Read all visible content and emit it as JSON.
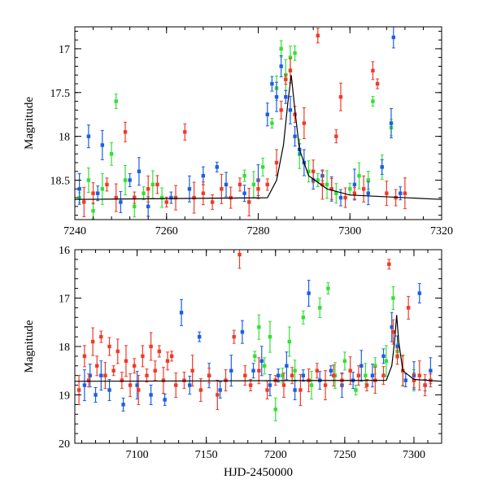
{
  "chart_data": [
    {
      "type": "scatter",
      "title": "",
      "xlabel": "",
      "ylabel": "Magnitude",
      "xlim": [
        7240,
        7320
      ],
      "ylim": [
        18.95,
        16.75
      ],
      "y_inverted": true,
      "x_ticks": [
        7240,
        7260,
        7280,
        7300,
        7320
      ],
      "y_ticks": [
        17,
        17.5,
        18,
        18.5
      ],
      "x_tick_labels": [
        "7240",
        "7260",
        "7280",
        "7300",
        "7320"
      ],
      "y_tick_labels": [
        "17",
        "17.5",
        "18",
        "18.5"
      ],
      "series": [
        {
          "name": "green",
          "color": "#33e033",
          "points": [
            [
              7241,
              18.7
            ],
            [
              7243,
              18.5
            ],
            [
              7244,
              18.85
            ],
            [
              7246,
              18.6
            ],
            [
              7248,
              18.2
            ],
            [
              7249,
              17.6
            ],
            [
              7251,
              18.5
            ],
            [
              7253,
              18.8
            ],
            [
              7255,
              18.65
            ],
            [
              7257,
              18.55
            ],
            [
              7259,
              18.7
            ],
            [
              7277,
              18.45
            ],
            [
              7279,
              18.55
            ],
            [
              7281,
              18.35
            ],
            [
              7283,
              17.85
            ],
            [
              7284,
              17.45
            ],
            [
              7285,
              17.0
            ],
            [
              7286,
              17.3
            ],
            [
              7287,
              17.1
            ],
            [
              7288,
              17.05
            ],
            [
              7289,
              18.2
            ],
            [
              7291,
              18.4
            ],
            [
              7293,
              18.5
            ],
            [
              7295,
              18.55
            ],
            [
              7297,
              18.65
            ],
            [
              7300,
              18.6
            ],
            [
              7302,
              18.45
            ],
            [
              7304,
              18.5
            ],
            [
              7305,
              17.6
            ],
            [
              7307,
              18.35
            ],
            [
              7309,
              17.9
            ]
          ]
        },
        {
          "name": "blue",
          "color": "#1b5ee6",
          "points": [
            [
              7241,
              18.6
            ],
            [
              7243,
              18.0
            ],
            [
              7245,
              18.65
            ],
            [
              7246,
              18.1
            ],
            [
              7250,
              18.75
            ],
            [
              7252,
              18.5
            ],
            [
              7254,
              18.4
            ],
            [
              7256,
              18.8
            ],
            [
              7261,
              18.7
            ],
            [
              7265,
              18.6
            ],
            [
              7268,
              18.45
            ],
            [
              7271,
              18.35
            ],
            [
              7273,
              18.55
            ],
            [
              7277,
              18.65
            ],
            [
              7280,
              18.5
            ],
            [
              7282,
              17.75
            ],
            [
              7283,
              17.4
            ],
            [
              7284,
              17.55
            ],
            [
              7285,
              17.2
            ],
            [
              7286,
              17.55
            ],
            [
              7287,
              17.7
            ],
            [
              7288,
              18.0
            ],
            [
              7289,
              18.15
            ],
            [
              7290,
              18.3
            ],
            [
              7292,
              18.5
            ],
            [
              7294,
              18.45
            ],
            [
              7296,
              18.6
            ],
            [
              7298,
              18.7
            ],
            [
              7301,
              18.55
            ],
            [
              7304,
              18.65
            ],
            [
              7307,
              18.35
            ],
            [
              7309,
              17.85
            ],
            [
              7309.5,
              16.87
            ],
            [
              7311,
              18.65
            ]
          ]
        },
        {
          "name": "red",
          "color": "#f03a28",
          "points": [
            [
              7242,
              18.75
            ],
            [
              7244,
              18.65
            ],
            [
              7247,
              18.55
            ],
            [
              7249,
              18.7
            ],
            [
              7251,
              17.95
            ],
            [
              7253,
              18.7
            ],
            [
              7256,
              18.6
            ],
            [
              7258,
              18.55
            ],
            [
              7260,
              18.75
            ],
            [
              7262,
              18.7
            ],
            [
              7264,
              17.95
            ],
            [
              7266,
              18.7
            ],
            [
              7268,
              18.65
            ],
            [
              7270,
              18.75
            ],
            [
              7272,
              18.6
            ],
            [
              7274,
              18.7
            ],
            [
              7276,
              18.55
            ],
            [
              7278,
              18.75
            ],
            [
              7280,
              18.6
            ],
            [
              7282,
              18.55
            ],
            [
              7284,
              18.3
            ],
            [
              7285,
              17.7
            ],
            [
              7286,
              17.35
            ],
            [
              7287,
              17.25
            ],
            [
              7288,
              17.75
            ],
            [
              7290,
              17.85
            ],
            [
              7292,
              18.4
            ],
            [
              7293,
              16.85
            ],
            [
              7294,
              18.55
            ],
            [
              7296,
              18.6
            ],
            [
              7297,
              18.0
            ],
            [
              7298,
              17.55
            ],
            [
              7299,
              18.7
            ],
            [
              7301,
              18.65
            ],
            [
              7303,
              18.6
            ],
            [
              7305,
              17.25
            ],
            [
              7306,
              17.4
            ],
            [
              7308,
              18.65
            ],
            [
              7310,
              18.7
            ],
            [
              7312,
              18.65
            ]
          ]
        },
        {
          "name": "model",
          "color": "#000000",
          "style": "line",
          "points": [
            [
              7240,
              18.72
            ],
            [
              7282,
              18.7
            ],
            [
              7284,
              18.5
            ],
            [
              7285.5,
              18.1
            ],
            [
              7286.5,
              17.6
            ],
            [
              7287.2,
              17.3
            ],
            [
              7288,
              17.7
            ],
            [
              7289,
              18.15
            ],
            [
              7291,
              18.45
            ],
            [
              7295,
              18.6
            ],
            [
              7300,
              18.67
            ],
            [
              7320,
              18.72
            ]
          ]
        }
      ]
    },
    {
      "type": "scatter",
      "title": "",
      "xlabel": "HJD-2450000",
      "ylabel": "Magnitude",
      "xlim": [
        7055,
        7320
      ],
      "ylim": [
        20,
        16
      ],
      "y_inverted": true,
      "x_ticks": [
        7100,
        7150,
        7200,
        7250,
        7300
      ],
      "y_ticks": [
        16,
        17,
        18,
        19,
        20
      ],
      "x_tick_labels": [
        "7100",
        "7150",
        "7200",
        "7250",
        "7300"
      ],
      "y_tick_labels": [
        "16",
        "17",
        "18",
        "19",
        "20"
      ],
      "series": [
        {
          "name": "green",
          "color": "#33e033",
          "points": [
            [
              7185,
              18.2
            ],
            [
              7188,
              17.6
            ],
            [
              7192,
              18.4
            ],
            [
              7196,
              17.8
            ],
            [
              7200,
              19.3
            ],
            [
              7205,
              18.6
            ],
            [
              7210,
              17.9
            ],
            [
              7214,
              18.5
            ],
            [
              7220,
              17.4
            ],
            [
              7226,
              18.8
            ],
            [
              7232,
              17.2
            ],
            [
              7238,
              16.8
            ],
            [
              7243,
              18.6
            ],
            [
              7250,
              18.3
            ],
            [
              7258,
              18.9
            ],
            [
              7265,
              18.6
            ],
            [
              7272,
              18.4
            ],
            [
              7280,
              18.3
            ],
            [
              7285,
              17.0
            ],
            [
              7288,
              18.1
            ],
            [
              7292,
              18.5
            ],
            [
              7300,
              18.7
            ]
          ]
        },
        {
          "name": "blue",
          "color": "#1b5ee6",
          "points": [
            [
              7062,
              18.8
            ],
            [
              7066,
              18.6
            ],
            [
              7070,
              19.0
            ],
            [
              7074,
              18.6
            ],
            [
              7080,
              18.9
            ],
            [
              7090,
              19.2
            ],
            [
              7100,
              18.8
            ],
            [
              7110,
              19.0
            ],
            [
              7120,
              19.1
            ],
            [
              7132,
              17.3
            ],
            [
              7138,
              18.8
            ],
            [
              7145,
              17.8
            ],
            [
              7152,
              18.6
            ],
            [
              7160,
              18.9
            ],
            [
              7168,
              18.5
            ],
            [
              7176,
              17.7
            ],
            [
              7184,
              18.5
            ],
            [
              7190,
              18.3
            ],
            [
              7196,
              18.8
            ],
            [
              7202,
              18.6
            ],
            [
              7208,
              18.4
            ],
            [
              7214,
              18.9
            ],
            [
              7220,
              18.6
            ],
            [
              7224,
              16.9
            ],
            [
              7232,
              18.7
            ],
            [
              7240,
              18.5
            ],
            [
              7248,
              18.8
            ],
            [
              7256,
              18.7
            ],
            [
              7262,
              18.4
            ],
            [
              7270,
              18.6
            ],
            [
              7278,
              18.2
            ],
            [
              7284,
              17.6
            ],
            [
              7288,
              18.0
            ],
            [
              7294,
              18.7
            ],
            [
              7300,
              18.6
            ],
            [
              7304,
              16.9
            ],
            [
              7308,
              18.8
            ],
            [
              7312,
              18.5
            ]
          ]
        },
        {
          "name": "red",
          "color": "#f03a28",
          "points": [
            [
              7058,
              18.9
            ],
            [
              7062,
              18.2
            ],
            [
              7065,
              18.7
            ],
            [
              7068,
              17.9
            ],
            [
              7071,
              18.4
            ],
            [
              7074,
              17.8
            ],
            [
              7077,
              18.6
            ],
            [
              7080,
              18.0
            ],
            [
              7083,
              18.5
            ],
            [
              7086,
              18.1
            ],
            [
              7089,
              18.7
            ],
            [
              7092,
              18.3
            ],
            [
              7095,
              18.8
            ],
            [
              7098,
              18.4
            ],
            [
              7101,
              18.9
            ],
            [
              7104,
              18.2
            ],
            [
              7107,
              18.6
            ],
            [
              7110,
              18.0
            ],
            [
              7113,
              18.5
            ],
            [
              7116,
              18.1
            ],
            [
              7119,
              18.7
            ],
            [
              7122,
              18.3
            ],
            [
              7125,
              18.2
            ],
            [
              7128,
              18.8
            ],
            [
              7134,
              18.7
            ],
            [
              7140,
              18.5
            ],
            [
              7146,
              18.9
            ],
            [
              7152,
              18.6
            ],
            [
              7158,
              19.0
            ],
            [
              7164,
              18.7
            ],
            [
              7170,
              17.8
            ],
            [
              7174,
              16.1
            ],
            [
              7178,
              18.6
            ],
            [
              7182,
              18.8
            ],
            [
              7188,
              18.5
            ],
            [
              7194,
              18.9
            ],
            [
              7200,
              18.7
            ],
            [
              7206,
              18.8
            ],
            [
              7212,
              18.6
            ],
            [
              7218,
              18.9
            ],
            [
              7224,
              18.7
            ],
            [
              7230,
              18.5
            ],
            [
              7236,
              18.8
            ],
            [
              7242,
              18.6
            ],
            [
              7248,
              18.7
            ],
            [
              7254,
              18.5
            ],
            [
              7260,
              18.6
            ],
            [
              7266,
              18.8
            ],
            [
              7272,
              18.7
            ],
            [
              7278,
              18.6
            ],
            [
              7282,
              16.3
            ],
            [
              7285,
              17.7
            ],
            [
              7288,
              18.2
            ],
            [
              7292,
              18.5
            ],
            [
              7296,
              17.2
            ],
            [
              7300,
              18.7
            ],
            [
              7304,
              18.6
            ],
            [
              7308,
              18.8
            ],
            [
              7312,
              18.7
            ]
          ]
        },
        {
          "name": "model",
          "color": "#000000",
          "style": "line",
          "points": [
            [
              7055,
              18.72
            ],
            [
              7280,
              18.7
            ],
            [
              7284,
              18.4
            ],
            [
              7286,
              17.9
            ],
            [
              7287.5,
              17.35
            ],
            [
              7289,
              17.9
            ],
            [
              7292,
              18.5
            ],
            [
              7300,
              18.68
            ],
            [
              7320,
              18.72
            ]
          ]
        }
      ]
    }
  ]
}
